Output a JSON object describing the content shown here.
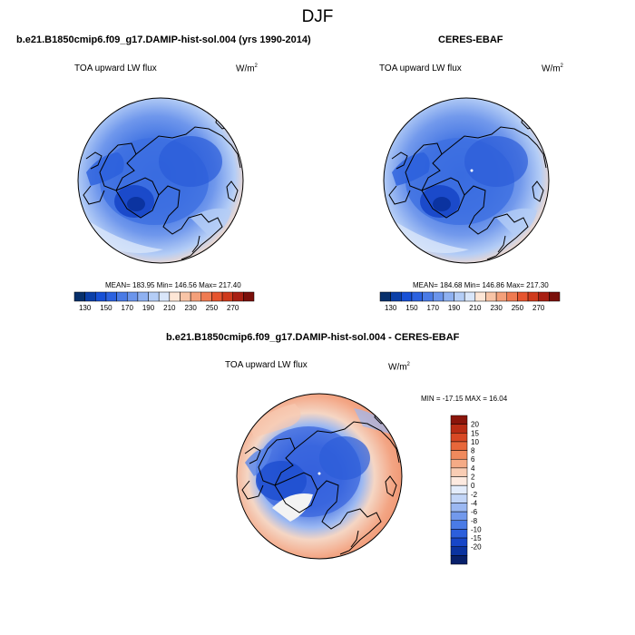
{
  "figure": {
    "title": "DJF"
  },
  "panels": [
    {
      "title": "b.e21.B1850cmip6.f09_g17.DAMIP-hist-sol.004 (yrs 1990-2014)",
      "variable": "TOA upward LW flux",
      "unit_base": "W/m",
      "unit_exp": "2",
      "stats": "MEAN= 183.95  Min= 146.56  Max= 217.40"
    },
    {
      "title": "CERES-EBAF",
      "variable": "TOA upward LW flux",
      "unit_base": "W/m",
      "unit_exp": "2",
      "stats": "MEAN= 184.68  Min= 146.86  Max= 217.30"
    },
    {
      "title": "b.e21.B1850cmip6.f09_g17.DAMIP-hist-sol.004 - CERES-EBAF",
      "variable": "TOA upward LW flux",
      "unit_base": "W/m",
      "unit_exp": "2",
      "stats": "MIN = -17.15  MAX =  16.04"
    }
  ],
  "colorbar_abs": {
    "colors": [
      "#08306b",
      "#0b3fa8",
      "#1750d6",
      "#2c62e0",
      "#4a7be6",
      "#6b95ec",
      "#8fb1f1",
      "#b4cdf6",
      "#d9e6fa",
      "#fde6d6",
      "#f8c4a6",
      "#f4a07a",
      "#ef7b52",
      "#e6552f",
      "#cf3a1c",
      "#a81f12",
      "#7a0f0a"
    ],
    "labels": [
      "130",
      "150",
      "170",
      "190",
      "210",
      "230",
      "250",
      "270"
    ]
  },
  "colorbar_diff": {
    "colors": [
      "#08206b",
      "#0b33a0",
      "#1746c8",
      "#2c5fdc",
      "#4a7be6",
      "#7299ec",
      "#9bb8f2",
      "#c2d5f7",
      "#e3ecfb",
      "#fdeae0",
      "#f9cdb4",
      "#f5ab86",
      "#f08a5d",
      "#e8673a",
      "#d84824",
      "#b92c14",
      "#8a150b"
    ],
    "labels": [
      "20",
      "15",
      "10",
      "8",
      "6",
      "4",
      "2",
      "0",
      "-2",
      "-4",
      "-6",
      "-8",
      "-10",
      "-15",
      "-20"
    ]
  }
}
